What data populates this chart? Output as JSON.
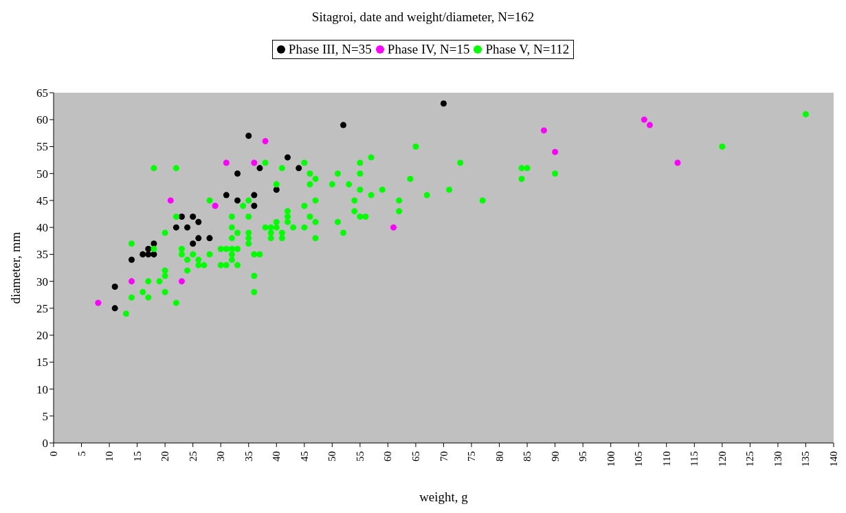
{
  "chart_data": {
    "type": "scatter",
    "title": "Sitagroi, date and weight/diameter, N=162",
    "xlabel": "weight, g",
    "ylabel": "diameter, mm",
    "xlim": [
      0,
      140
    ],
    "xticks": [
      0,
      5,
      10,
      15,
      20,
      25,
      30,
      35,
      40,
      45,
      50,
      55,
      60,
      65,
      70,
      75,
      80,
      85,
      90,
      95,
      100,
      105,
      110,
      115,
      120,
      125,
      130,
      135,
      140
    ],
    "ylim": [
      0,
      65
    ],
    "yticks": [
      0,
      5,
      10,
      15,
      20,
      25,
      30,
      35,
      40,
      45,
      50,
      55,
      60,
      65
    ],
    "legend": "top",
    "marker": "circle",
    "series": [
      {
        "name": "Phase III, N=35",
        "color": "#000000",
        "x": [
          11,
          11,
          14,
          16,
          17,
          18,
          17,
          18,
          22,
          23,
          24,
          25,
          26,
          26,
          25,
          28,
          31,
          33,
          33,
          35,
          36,
          36,
          37,
          40,
          42,
          44,
          52,
          70
        ],
        "values": [
          29,
          25,
          34,
          35,
          35,
          35,
          36,
          37,
          40,
          42,
          40,
          42,
          41,
          38,
          37,
          38,
          46,
          50,
          45,
          57,
          46,
          44,
          51,
          47,
          53,
          51,
          59,
          63
        ]
      },
      {
        "name": "Phase IV, N=15",
        "color": "#ff00ff",
        "x": [
          8,
          14,
          21,
          23,
          29,
          31,
          36,
          38,
          61,
          88,
          90,
          106,
          107,
          112
        ],
        "values": [
          26,
          30,
          45,
          30,
          44,
          52,
          52,
          56,
          40,
          58,
          54,
          60,
          59,
          52
        ]
      },
      {
        "name": "Phase V, N=112",
        "color": "#00ff00",
        "x": [
          13,
          14,
          14,
          16,
          17,
          17,
          18,
          18,
          19,
          20,
          20,
          20,
          20,
          22,
          22,
          22,
          23,
          23,
          24,
          24,
          25,
          26,
          26,
          27,
          28,
          28,
          30,
          30,
          31,
          31,
          32,
          32,
          32,
          32,
          32,
          32,
          33,
          33,
          33,
          34,
          35,
          35,
          35,
          35,
          35,
          36,
          36,
          36,
          37,
          38,
          38,
          39,
          39,
          39,
          40,
          40,
          40,
          41,
          41,
          41,
          42,
          42,
          42,
          43,
          45,
          45,
          45,
          46,
          46,
          46,
          47,
          47,
          47,
          47,
          50,
          51,
          51,
          52,
          53,
          54,
          54,
          55,
          55,
          55,
          55,
          56,
          57,
          57,
          59,
          62,
          62,
          64,
          65,
          67,
          71,
          73,
          77,
          84,
          85,
          84,
          90,
          120,
          135
        ],
        "values": [
          24,
          37,
          27,
          28,
          30,
          27,
          51,
          36,
          30,
          39,
          32,
          31,
          28,
          51,
          42,
          26,
          36,
          35,
          34,
          32,
          35,
          34,
          33,
          33,
          45,
          35,
          36,
          33,
          36,
          33,
          42,
          40,
          38,
          36,
          35,
          34,
          39,
          36,
          33,
          44,
          45,
          42,
          39,
          38,
          37,
          35,
          31,
          28,
          35,
          52,
          40,
          40,
          39,
          38,
          48,
          41,
          40,
          51,
          39,
          38,
          43,
          42,
          41,
          40,
          52,
          44,
          40,
          50,
          48,
          42,
          49,
          45,
          41,
          38,
          48,
          50,
          41,
          39,
          48,
          45,
          43,
          52,
          50,
          47,
          42,
          42,
          53,
          46,
          47,
          45,
          43,
          49,
          55,
          46,
          47,
          52,
          45,
          51,
          51,
          49,
          50,
          55,
          61
        ]
      }
    ]
  }
}
